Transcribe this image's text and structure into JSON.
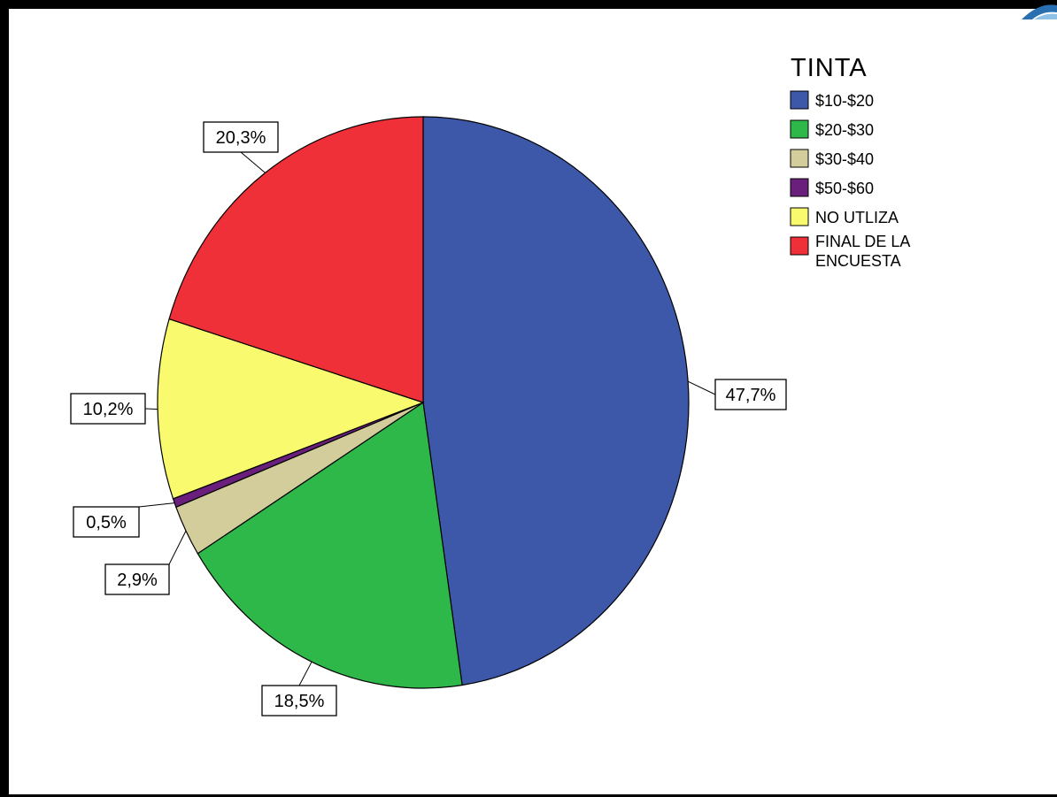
{
  "chart_data": {
    "type": "pie",
    "legend_title": "TINTA",
    "legend_placement": "top-right",
    "slices": [
      {
        "label": "$10-$20",
        "value": 47.7,
        "display": "47,7%",
        "color": "#3d58a8"
      },
      {
        "label": "$20-$30",
        "value": 18.5,
        "display": "18,5%",
        "color": "#2eb84a"
      },
      {
        "label": "$30-$40",
        "value": 2.9,
        "display": "2,9%",
        "color": "#d3cc9b"
      },
      {
        "label": "$50-$60",
        "value": 0.5,
        "display": "0,5%",
        "color": "#6b1f7c"
      },
      {
        "label": "NO UTLIZA",
        "value": 10.2,
        "display": "10,2%",
        "color": "#fafa6e"
      },
      {
        "label": [
          "FINAL DE LA",
          "ENCUESTA"
        ],
        "value": 20.3,
        "display": "20,3%",
        "color": "#ef3038"
      }
    ]
  }
}
